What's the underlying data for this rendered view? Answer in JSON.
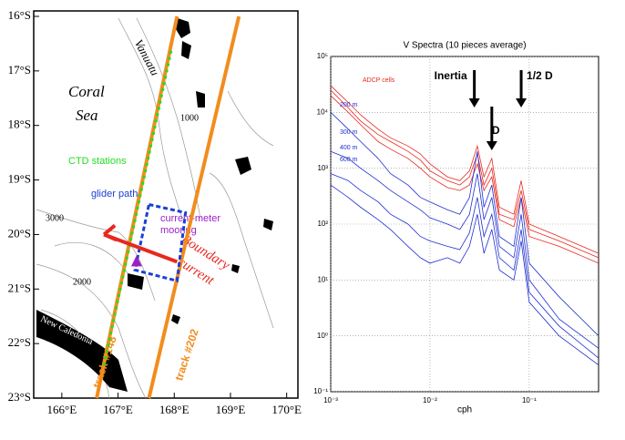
{
  "map": {
    "xlim": [
      165.5,
      170.2
    ],
    "ylim": [
      -23,
      -15.9
    ],
    "lon_ticks": [
      {
        "value": 166,
        "label": "166°E"
      },
      {
        "value": 167,
        "label": "167°E"
      },
      {
        "value": 168,
        "label": "168°E"
      },
      {
        "value": 169,
        "label": "169°E"
      },
      {
        "value": 170,
        "label": "170°E"
      }
    ],
    "lat_ticks": [
      {
        "value": -16,
        "label": "16°S"
      },
      {
        "value": -17,
        "label": "17°S"
      },
      {
        "value": -18,
        "label": "18°S"
      },
      {
        "value": -19,
        "label": "19°S"
      },
      {
        "value": -20,
        "label": "20°S"
      },
      {
        "value": -21,
        "label": "21°S"
      },
      {
        "value": -22,
        "label": "22°S"
      },
      {
        "value": -23,
        "label": "23°S"
      }
    ],
    "labels": [
      "Coral",
      "Sea",
      "Vanuatu",
      "CTD stations",
      "glider path",
      "current-meter",
      "mooring",
      "Boundary",
      "current",
      "New Caledonia",
      "1000",
      "2000",
      "3000"
    ],
    "tracks": [
      {
        "name": "track #148",
        "color": "#f28c1e",
        "lon": [
          166.62,
          168.05
        ],
        "lat": [
          -23,
          -16
        ]
      },
      {
        "name": "track #202",
        "color": "#f28c1e",
        "lon": [
          167.55,
          169.15
        ],
        "lat": [
          -23,
          -16
        ]
      }
    ],
    "ctd": {
      "color": "#22dd22",
      "lon": [
        166.75,
        167.95
      ],
      "lat": [
        -22.4,
        -16.6
      ]
    },
    "glider": {
      "color": "#1a3fd6",
      "lon": [
        167.55,
        168.2,
        168.05,
        167.3,
        167.55
      ],
      "lat": [
        -19.45,
        -19.6,
        -20.85,
        -20.65,
        -19.45
      ]
    },
    "mooring": {
      "color": "#9b1fc9",
      "lon": 167.33,
      "lat": -20.5
    },
    "current": {
      "color": "#e8281e",
      "lon": [
        168.05,
        166.75
      ],
      "lat": [
        -20.5,
        -20.0
      ]
    }
  },
  "chart_data": {
    "type": "line",
    "title": "V Spectra (10 pieces average)",
    "x_label": "cph",
    "panel_label": "V",
    "log_x": true,
    "log_y": true,
    "grid": true,
    "xlim": [
      0.001,
      0.5
    ],
    "ylim": [
      0.1,
      100000
    ],
    "xticks": [
      {
        "value": 0.001,
        "label": "10⁻³"
      },
      {
        "value": 0.01,
        "label": "10⁻²"
      },
      {
        "value": 0.1,
        "label": "10⁻¹"
      }
    ],
    "yticks": [
      {
        "value": 0.1,
        "label": "10⁻¹"
      },
      {
        "value": 1,
        "label": "10⁰"
      },
      {
        "value": 10,
        "label": "10¹"
      },
      {
        "value": 100,
        "label": "10²"
      },
      {
        "value": 1000,
        "label": "10³"
      },
      {
        "value": 10000,
        "label": "10⁴"
      },
      {
        "value": 100000,
        "label": "10⁵"
      }
    ],
    "x": [
      0.001,
      0.0015,
      0.002,
      0.003,
      0.004,
      0.006,
      0.008,
      0.01,
      0.015,
      0.02,
      0.025,
      0.03,
      0.035,
      0.042,
      0.05,
      0.07,
      0.083,
      0.1,
      0.2,
      0.5
    ],
    "series": [
      {
        "name": "ADCP cells",
        "color": "#e8281e",
        "values": [
          30000,
          15000,
          9000,
          5000,
          3500,
          2500,
          1800,
          1200,
          700,
          600,
          900,
          2500,
          700,
          1500,
          200,
          150,
          600,
          100,
          60,
          30
        ]
      },
      {
        "color": "#e8281e",
        "values": [
          25000,
          12000,
          7000,
          4000,
          3000,
          2000,
          1400,
          900,
          600,
          500,
          700,
          1800,
          500,
          1000,
          150,
          120,
          400,
          80,
          50,
          25
        ]
      },
      {
        "color": "#e8281e",
        "values": [
          20000,
          10000,
          6000,
          3000,
          2200,
          1500,
          1000,
          700,
          450,
          400,
          500,
          1200,
          400,
          700,
          120,
          90,
          300,
          60,
          40,
          20
        ]
      },
      {
        "name": "200 m",
        "color": "#1f2fd0",
        "values": [
          10000,
          5000,
          3000,
          1500,
          800,
          500,
          300,
          250,
          180,
          150,
          300,
          2000,
          200,
          500,
          60,
          40,
          300,
          20,
          5,
          1
        ]
      },
      {
        "name": "300 m",
        "color": "#1f2fd0",
        "values": [
          2000,
          1500,
          1000,
          600,
          400,
          250,
          180,
          130,
          100,
          80,
          150,
          800,
          120,
          300,
          40,
          25,
          150,
          10,
          2,
          0.6
        ]
      },
      {
        "name": "400 m",
        "color": "#1f2fd0",
        "values": [
          800,
          600,
          400,
          250,
          150,
          100,
          60,
          50,
          40,
          35,
          70,
          300,
          60,
          150,
          25,
          15,
          80,
          6,
          1.5,
          0.4
        ]
      },
      {
        "name": "600 m",
        "color": "#1f2fd0",
        "values": [
          500,
          300,
          200,
          120,
          80,
          40,
          25,
          20,
          25,
          20,
          40,
          150,
          30,
          80,
          15,
          10,
          50,
          4,
          1,
          0.3
        ]
      }
    ],
    "annotations": [
      {
        "text": "Inertia",
        "x": 0.028
      },
      {
        "text": "D",
        "x": 0.042
      },
      {
        "text": "1/2 D",
        "x": 0.083
      }
    ]
  }
}
